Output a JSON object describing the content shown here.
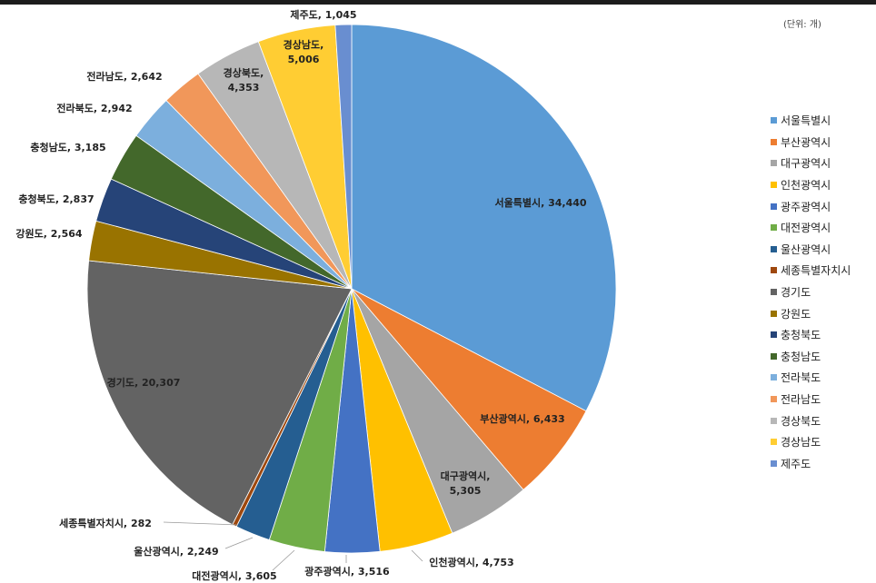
{
  "unit_label": "(단위: 개)",
  "chart_data": {
    "type": "pie",
    "unit": "개",
    "legend_position": "right",
    "categories": [
      "서울특별시",
      "부산광역시",
      "대구광역시",
      "인천광역시",
      "광주광역시",
      "대전광역시",
      "울산광역시",
      "세종특별자치시",
      "경기도",
      "강원도",
      "충청북도",
      "충청남도",
      "전라북도",
      "전라남도",
      "경상북도",
      "경상남도",
      "제주도"
    ],
    "values": [
      34440,
      6433,
      5305,
      4753,
      3516,
      3605,
      2249,
      282,
      20307,
      2564,
      2837,
      3185,
      2942,
      2642,
      4353,
      5006,
      1045
    ],
    "colors": [
      "#5B9BD5",
      "#ED7D31",
      "#A5A5A5",
      "#FFC000",
      "#4472C4",
      "#70AD47",
      "#255E91",
      "#9E480E",
      "#636363",
      "#997300",
      "#264478",
      "#43682B",
      "#7CAFDD",
      "#F1975A",
      "#B7B7B7",
      "#FFCD33",
      "#698ED0"
    ],
    "data_labels": [
      {
        "name": "서울특별시",
        "value": "34,440"
      },
      {
        "name": "부산광역시",
        "value": "6,433"
      },
      {
        "name": "대구광역시",
        "value": "5,305"
      },
      {
        "name": "인천광역시",
        "value": "4,753"
      },
      {
        "name": "광주광역시",
        "value": "3,516"
      },
      {
        "name": "대전광역시",
        "value": "3,605"
      },
      {
        "name": "울산광역시",
        "value": "2,249"
      },
      {
        "name": "세종특별자치시",
        "value": "282"
      },
      {
        "name": "경기도",
        "value": "20,307"
      },
      {
        "name": "강원도",
        "value": "2,564"
      },
      {
        "name": "충청북도",
        "value": "2,837"
      },
      {
        "name": "충청남도",
        "value": "3,185"
      },
      {
        "name": "전라북도",
        "value": "2,942"
      },
      {
        "name": "전라남도",
        "value": "2,642"
      },
      {
        "name": "경상북도",
        "value": "4,353"
      },
      {
        "name": "경상남도",
        "value": "5,006"
      },
      {
        "name": "제주도",
        "value": "1,045"
      }
    ]
  }
}
